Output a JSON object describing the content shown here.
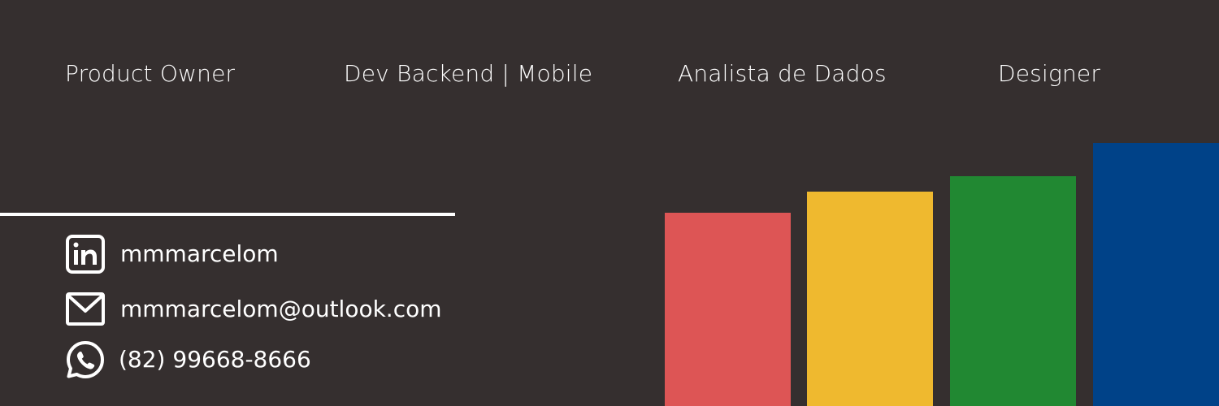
{
  "theme": {
    "background": "#352f2f",
    "text": "#ffffff",
    "divider": "#ffffff"
  },
  "roles": [
    {
      "label": "Product Owner"
    },
    {
      "label": "Dev Backend | Mobile"
    },
    {
      "label": "Analista de Dados"
    },
    {
      "label": "Designer"
    }
  ],
  "contacts": {
    "linkedin": {
      "icon": "linkedin-icon",
      "text": "mmmarcelom"
    },
    "email": {
      "icon": "mail-icon",
      "text": "mmmarcelom@outlook.com"
    },
    "phone": {
      "icon": "whatsapp-icon",
      "text": "(82) 99668-8666"
    }
  },
  "bars": [
    {
      "color": "#dd5555",
      "level": 0.476
    },
    {
      "color": "#efb92f",
      "level": 0.528
    },
    {
      "color": "#218832",
      "level": 0.566
    },
    {
      "color": "#004288",
      "level": 0.648
    }
  ]
}
